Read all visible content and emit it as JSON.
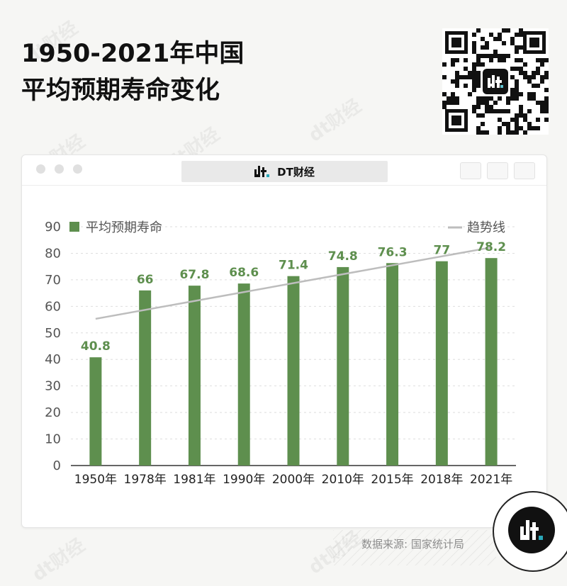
{
  "title": {
    "line1": "1950-2021年中国",
    "line2": "平均预期寿命变化"
  },
  "brand": {
    "name": "DT财经",
    "watermark": "dt财经",
    "logo_icon": "dt-logo-icon",
    "qr_icon": "qr-code-icon"
  },
  "window": {
    "title": "DT财经"
  },
  "source": "数据来源: 国家统计局",
  "colors": {
    "bar": "#5e8f4e",
    "label": "#5e8f4e",
    "trend": "#bdbdbd",
    "grid": "#dedede",
    "background": "#f6f6f4"
  },
  "chart_data": {
    "type": "bar",
    "categories": [
      "1950年",
      "1978年",
      "1981年",
      "1990年",
      "2000年",
      "2010年",
      "2015年",
      "2018年",
      "2021年"
    ],
    "series": [
      {
        "name": "平均预期寿命",
        "values": [
          40.8,
          66,
          67.8,
          68.6,
          71.4,
          74.8,
          76.3,
          77,
          78.2
        ]
      }
    ],
    "value_labels": [
      "40.8",
      "66",
      "67.8",
      "68.6",
      "71.4",
      "74.8",
      "76.3",
      "77",
      "78.2"
    ],
    "trendline": {
      "name": "趋势线",
      "start": 55.3,
      "end": 82.2
    },
    "ylim": [
      0,
      90
    ],
    "yticks": [
      "0",
      "10",
      "20",
      "30",
      "40",
      "50",
      "60",
      "70",
      "80",
      "90"
    ],
    "grid": true,
    "legend": {
      "bars": "平均预期寿命",
      "line": "趋势线",
      "placement": "top"
    }
  }
}
